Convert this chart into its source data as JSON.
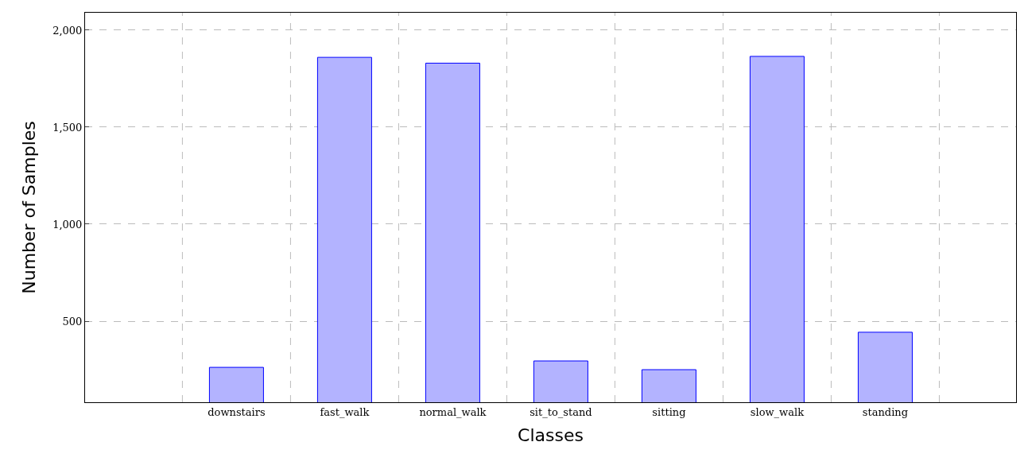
{
  "chart_data": {
    "type": "bar",
    "xlabel": "Classes",
    "ylabel": "Number of Samples",
    "categories": [
      "downstairs",
      "fast_walk",
      "normal_walk",
      "sit_to_stand",
      "sitting",
      "slow_walk",
      "standing"
    ],
    "values": [
      262,
      1860,
      1830,
      295,
      250,
      1865,
      443
    ],
    "color": "#b3b3ff",
    "ylim": [
      82,
      2090
    ],
    "yticks": [
      {
        "value": 500,
        "label": "500"
      },
      {
        "value": 1000,
        "label": "1,000"
      },
      {
        "value": 1500,
        "label": "1,500"
      },
      {
        "value": 2000,
        "label": "2,000"
      }
    ],
    "grid": true,
    "legend": false
  }
}
